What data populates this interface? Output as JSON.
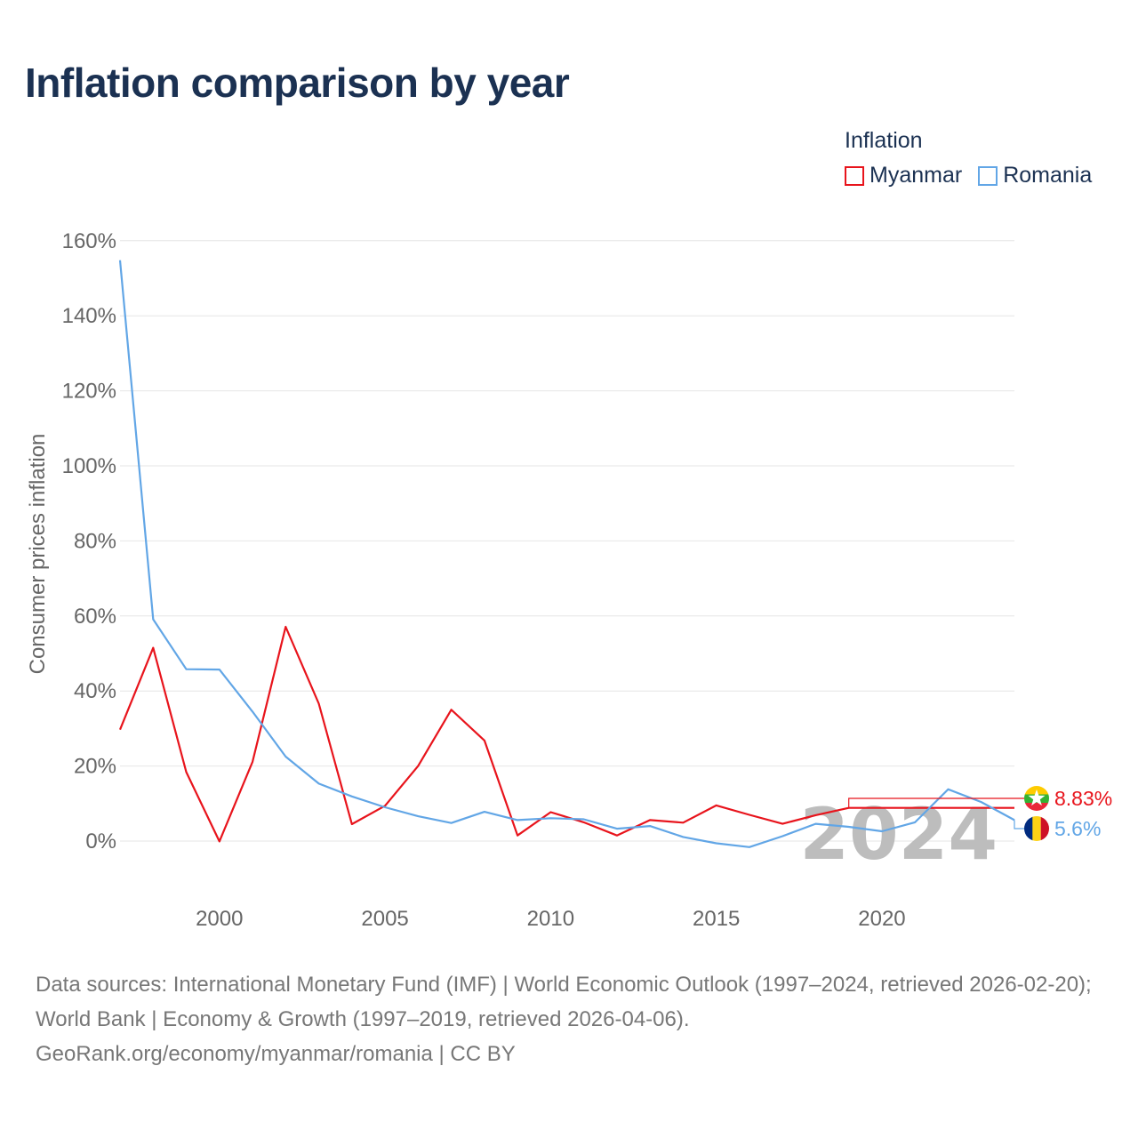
{
  "title": "Inflation comparison by year",
  "legend": {
    "title": "Inflation",
    "items": [
      {
        "label": "Myanmar",
        "color": "#e8141c"
      },
      {
        "label": "Romania",
        "color": "#62a6e6"
      }
    ]
  },
  "footer": {
    "sources": "Data sources: International Monetary Fund (IMF) | World Economic Outlook (1997–2024, retrieved 2026-02-20); World Bank | Economy & Growth (1997–2019, retrieved 2026-04-06).",
    "credit": "GeoRank.org/economy/myanmar/romania | CC BY"
  },
  "chart_data": {
    "type": "line",
    "title": "Inflation comparison by year",
    "xlabel": "",
    "ylabel": "Consumer prices inflation",
    "xlim": [
      1997,
      2024
    ],
    "ylim": [
      -10,
      162
    ],
    "x_ticks": [
      2000,
      2005,
      2010,
      2015,
      2020
    ],
    "y_ticks": [
      0,
      20,
      40,
      60,
      80,
      100,
      120,
      140,
      160
    ],
    "y_tick_labels": [
      "0%",
      "20%",
      "40%",
      "60%",
      "80%",
      "100%",
      "120%",
      "140%",
      "160%"
    ],
    "year_watermark": "2024",
    "series": [
      {
        "name": "Myanmar",
        "color": "#e8141c",
        "x": [
          1997,
          1998,
          1999,
          2000,
          2001,
          2002,
          2003,
          2004,
          2005,
          2006,
          2007,
          2008,
          2009,
          2010,
          2011,
          2012,
          2013,
          2014,
          2015,
          2016,
          2017,
          2018,
          2019,
          2024
        ],
        "values": [
          29.7,
          51.5,
          18.4,
          -0.1,
          21.1,
          57.1,
          36.6,
          4.5,
          9.4,
          20.0,
          35.0,
          26.8,
          1.5,
          7.7,
          5.0,
          1.5,
          5.6,
          4.9,
          9.5,
          7.0,
          4.6,
          6.9,
          8.83,
          8.83
        ],
        "end_label": "8.83%"
      },
      {
        "name": "Romania",
        "color": "#62a6e6",
        "x": [
          1997,
          1998,
          1999,
          2000,
          2001,
          2002,
          2003,
          2004,
          2005,
          2006,
          2007,
          2008,
          2009,
          2010,
          2011,
          2012,
          2013,
          2014,
          2015,
          2016,
          2017,
          2018,
          2019,
          2020,
          2021,
          2022,
          2023,
          2024
        ],
        "values": [
          154.8,
          59.1,
          45.8,
          45.7,
          34.5,
          22.5,
          15.3,
          11.9,
          9.0,
          6.6,
          4.8,
          7.8,
          5.6,
          6.1,
          5.8,
          3.3,
          4.0,
          1.1,
          -0.6,
          -1.6,
          1.3,
          4.6,
          3.8,
          2.6,
          5.0,
          13.8,
          10.4,
          5.6
        ],
        "end_label": "5.6%"
      }
    ]
  }
}
